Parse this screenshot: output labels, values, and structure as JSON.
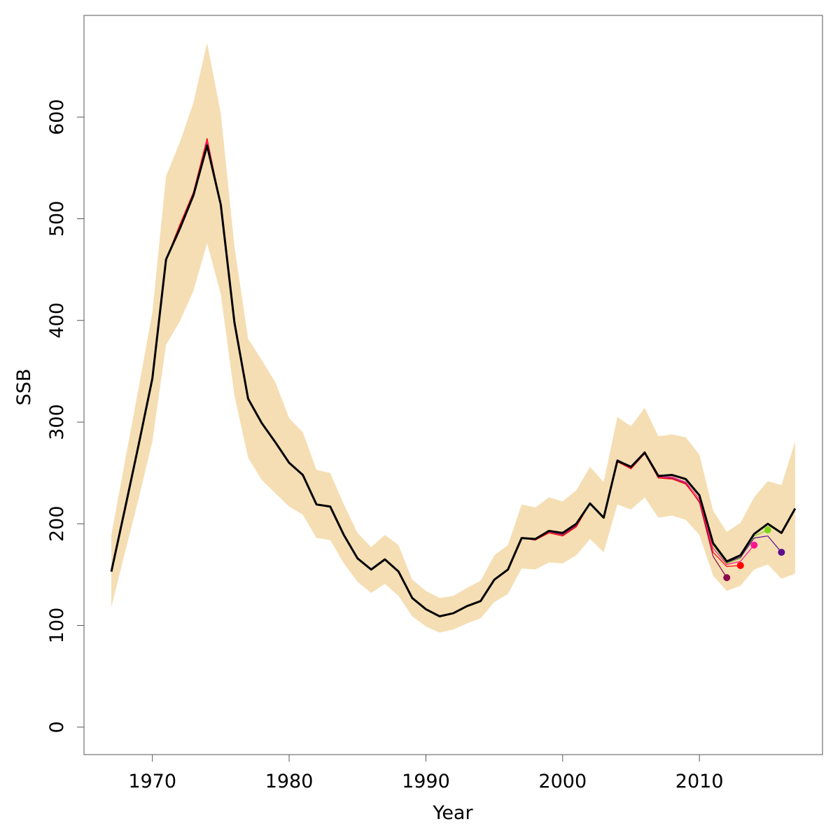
{
  "chart_data": {
    "type": "line",
    "xlabel": "Year",
    "ylabel": "SSB",
    "x": [
      1967,
      1968,
      1969,
      1970,
      1971,
      1972,
      1973,
      1974,
      1975,
      1976,
      1977,
      1978,
      1979,
      1980,
      1981,
      1982,
      1983,
      1984,
      1985,
      1986,
      1987,
      1988,
      1989,
      1990,
      1991,
      1992,
      1993,
      1994,
      1995,
      1996,
      1997,
      1998,
      1999,
      2000,
      2001,
      2002,
      2003,
      2004,
      2005,
      2006,
      2007,
      2008,
      2009,
      2010,
      2011,
      2012,
      2013,
      2014,
      2015,
      2016,
      2017
    ],
    "band": {
      "color": "#f5deb3",
      "upper": [
        189,
        262,
        334,
        408,
        542,
        575,
        614,
        673,
        604,
        473,
        382,
        361,
        339,
        304,
        290,
        253,
        250,
        219,
        191,
        177,
        189,
        179,
        145,
        134,
        127,
        129,
        137,
        144,
        169,
        179,
        219,
        216,
        226,
        222,
        233,
        256,
        241,
        305,
        296,
        314,
        286,
        288,
        285,
        268,
        213,
        192,
        201,
        226,
        242,
        238,
        281
      ],
      "lower": [
        118,
        172,
        225,
        281,
        376,
        399,
        429,
        476,
        426,
        326,
        265,
        243,
        230,
        217,
        209,
        186,
        184,
        161,
        143,
        132,
        141,
        129,
        109,
        99,
        93,
        96,
        102,
        107,
        123,
        131,
        156,
        155,
        162,
        161,
        169,
        185,
        172,
        219,
        214,
        226,
        206,
        208,
        204,
        189,
        149,
        134,
        139,
        155,
        160,
        146,
        151
      ]
    },
    "series": [
      {
        "color": "#8b0a50",
        "point_last": true,
        "values": [
          153,
          215,
          278,
          343,
          460,
          491,
          524,
          575,
          514,
          398,
          323,
          299,
          280,
          260,
          248,
          219,
          217,
          189,
          166,
          155,
          165,
          153,
          127,
          116,
          109,
          112,
          119,
          124,
          145,
          155,
          186,
          184,
          192,
          189,
          198,
          220,
          206,
          262,
          255,
          270,
          245,
          245,
          240,
          221,
          168,
          147,
          null,
          null,
          null,
          null,
          null
        ]
      },
      {
        "color": "#ff0000",
        "point_last": true,
        "values": [
          153,
          215,
          278,
          343,
          460,
          494,
          526,
          579,
          514,
          398,
          323,
          299,
          280,
          260,
          248,
          219,
          217,
          189,
          166,
          155,
          165,
          153,
          127,
          116,
          109,
          112,
          119,
          124,
          145,
          155,
          186,
          184,
          191,
          188,
          197,
          220,
          206,
          261,
          254,
          269,
          245,
          244,
          239,
          222,
          172,
          158,
          159,
          null,
          null,
          null,
          null
        ]
      },
      {
        "color": "#ff1493",
        "point_last": true,
        "values": [
          153,
          215,
          278,
          343,
          460,
          492,
          525,
          576,
          514,
          398,
          323,
          299,
          280,
          260,
          248,
          219,
          217,
          189,
          166,
          155,
          165,
          153,
          127,
          116,
          109,
          112,
          119,
          124,
          145,
          155,
          186,
          185,
          192,
          190,
          199,
          220,
          206,
          262,
          255,
          270,
          246,
          246,
          241,
          224,
          176,
          160,
          163,
          179,
          null,
          null,
          null
        ]
      },
      {
        "color": "#7fd41a",
        "point_last": true,
        "values": [
          153,
          215,
          278,
          343,
          460,
          490,
          523,
          572,
          514,
          398,
          323,
          299,
          280,
          260,
          248,
          219,
          217,
          189,
          166,
          155,
          165,
          153,
          127,
          116,
          109,
          112,
          119,
          124,
          145,
          155,
          186,
          185,
          193,
          191,
          200,
          220,
          206,
          262,
          256,
          270,
          247,
          248,
          243,
          227,
          179,
          161,
          166,
          188,
          194,
          null,
          null
        ]
      },
      {
        "color": "#5a0e8f",
        "point_last": true,
        "values": [
          153,
          215,
          278,
          343,
          460,
          490,
          523,
          572,
          514,
          398,
          323,
          299,
          280,
          260,
          248,
          219,
          217,
          189,
          166,
          155,
          165,
          153,
          127,
          116,
          109,
          112,
          119,
          124,
          145,
          155,
          186,
          185,
          193,
          191,
          200,
          220,
          206,
          263,
          256,
          271,
          247,
          248,
          244,
          228,
          180,
          162,
          167,
          186,
          188,
          172,
          null
        ]
      },
      {
        "color": "#000000",
        "width": 3,
        "values": [
          153,
          215,
          278,
          343,
          460,
          490,
          523,
          572,
          514,
          398,
          323,
          299,
          280,
          260,
          248,
          219,
          217,
          189,
          166,
          155,
          165,
          153,
          127,
          116,
          109,
          112,
          119,
          124,
          145,
          155,
          186,
          185,
          193,
          191,
          200,
          220,
          206,
          262,
          256,
          270,
          247,
          248,
          244,
          228,
          181,
          163,
          169,
          190,
          200,
          191,
          215
        ]
      }
    ],
    "xlim": [
      1965,
      2019
    ],
    "xticks": [
      1970,
      1980,
      1990,
      2000,
      2010
    ],
    "ylim": [
      -27,
      700
    ],
    "yticks": [
      0,
      100,
      200,
      300,
      400,
      500,
      600
    ]
  }
}
